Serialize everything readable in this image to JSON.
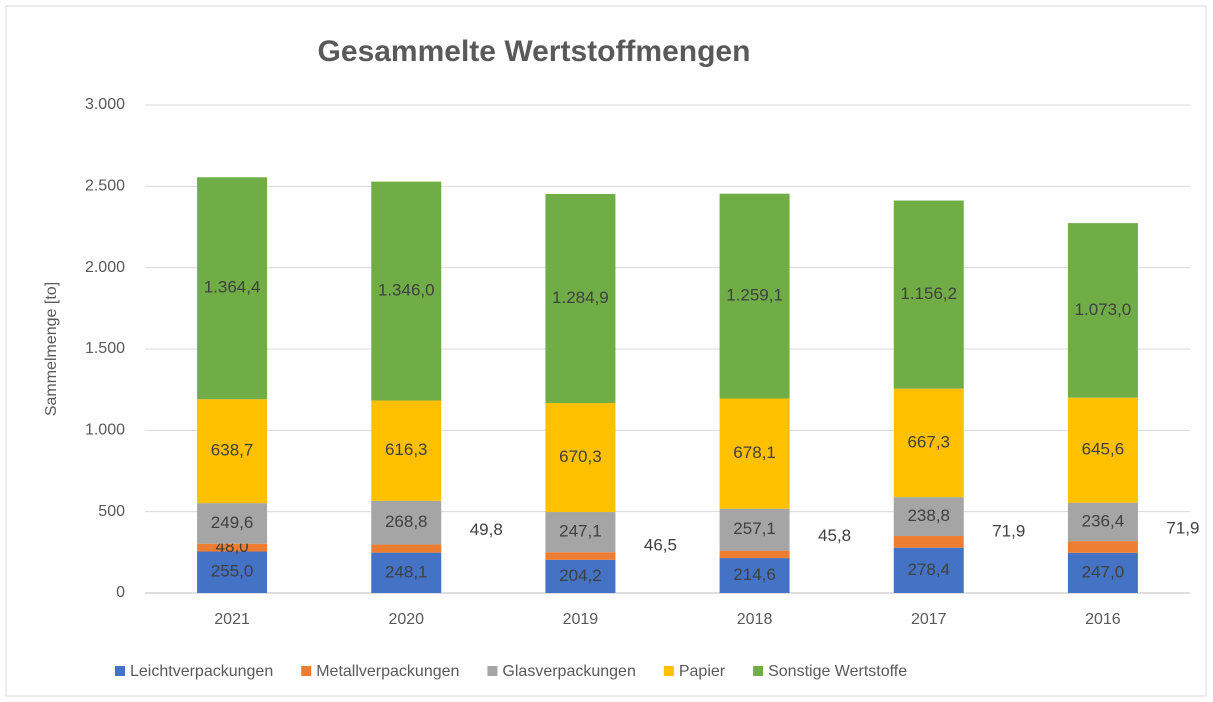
{
  "chart_data": {
    "type": "stacked_bar",
    "title": "Gesammelte Wertstoffmengen",
    "y_label": "Sammelmenge [to]",
    "categories": [
      "2021",
      "2020",
      "2019",
      "2018",
      "2017",
      "2016"
    ],
    "series": [
      {
        "name": "Leichtverpackungen",
        "color": "#4472c4",
        "values": [
          255.0,
          248.1,
          204.2,
          214.6,
          278.4,
          247.0
        ],
        "value_labels": [
          "255,0",
          "248,1",
          "204,2",
          "214,6",
          "278,4",
          "247,0"
        ]
      },
      {
        "name": "Metallverpackungen",
        "color": "#ed7d31",
        "values": [
          48.0,
          49.8,
          46.5,
          45.8,
          71.9,
          71.9
        ],
        "value_labels": [
          "48,0",
          "49,8",
          "46,5",
          "45,8",
          "71,9",
          "71,9"
        ]
      },
      {
        "name": "Glasverpackungen",
        "color": "#a5a5a5",
        "values": [
          249.6,
          268.8,
          247.1,
          257.1,
          238.8,
          236.4
        ],
        "value_labels": [
          "249,6",
          "268,8",
          "247,1",
          "257,1",
          "238,8",
          "236,4"
        ]
      },
      {
        "name": "Papier",
        "color": "#ffc000",
        "values": [
          638.7,
          616.3,
          670.3,
          678.1,
          667.3,
          645.6
        ],
        "value_labels": [
          "638,7",
          "616,3",
          "670,3",
          "678,1",
          "667,3",
          "645,6"
        ]
      },
      {
        "name": "Sonstige Wertstoffe",
        "color": "#70ad47",
        "values": [
          1364.4,
          1346.0,
          1284.9,
          1259.1,
          1156.2,
          1073.0
        ],
        "value_labels": [
          "1.364,4",
          "1.346,0",
          "1.284,9",
          "1.259,1",
          "1.156,2",
          "1.073,0"
        ]
      }
    ],
    "ylim": [
      0,
      3000
    ],
    "yticks": [
      0,
      500,
      {
        "value": 1000,
        "label": "1.000"
      },
      {
        "value": 1500,
        "label": "1.500"
      },
      {
        "value": 2000,
        "label": "2.000"
      },
      {
        "value": 2500,
        "label": "2.500"
      },
      {
        "value": 3000,
        "label": "3.000"
      }
    ],
    "grid": true,
    "legend": "bottom"
  }
}
